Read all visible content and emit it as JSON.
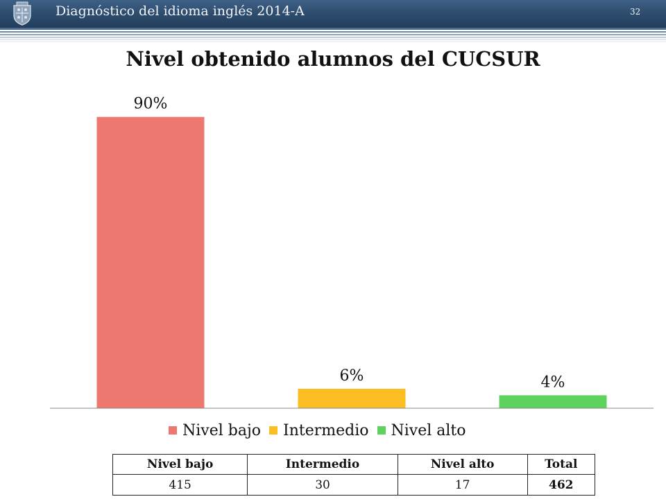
{
  "header": {
    "title": "Diagnóstico del idioma inglés 2014-A",
    "slide_number": "32",
    "logo_icon": "university-shield-icon",
    "bar_color": "#2c4a6b"
  },
  "chart_data": {
    "type": "bar",
    "title": "Nivel obtenido alumnos del CUCSUR",
    "categories": [
      "Nivel bajo",
      "Intermedio",
      "Nivel alto"
    ],
    "values": [
      90,
      6,
      4
    ],
    "value_labels": [
      "90%",
      "6%",
      "4%"
    ],
    "colors": [
      "#ed7870",
      "#fbbd22",
      "#5dd35e"
    ],
    "ylim": [
      0,
      100
    ],
    "grid": false,
    "legend": {
      "position": "bottom",
      "entries": [
        "Nivel bajo",
        "Intermedio",
        "Nivel alto"
      ]
    }
  },
  "table": {
    "headers": [
      "Nivel bajo",
      "Intermedio",
      "Nivel alto",
      "Total"
    ],
    "row": [
      "415",
      "30",
      "17",
      "462"
    ]
  }
}
